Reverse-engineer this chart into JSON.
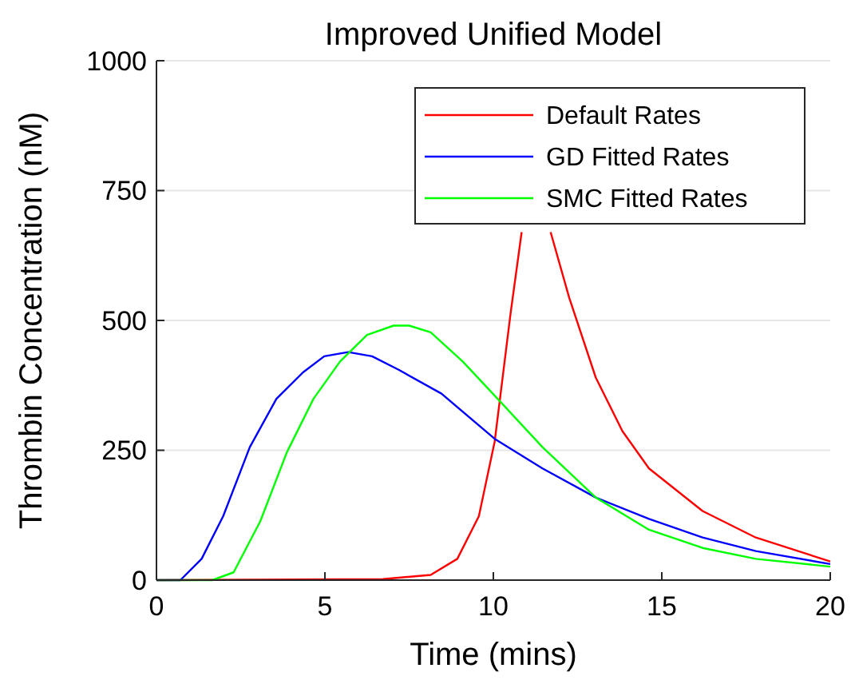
{
  "chart_data": {
    "type": "line",
    "title": "Improved Unified Model",
    "xlabel": "Time (mins)",
    "ylabel": "Thrombin Concentration (nM)",
    "xlim": [
      0,
      20
    ],
    "xticks": [
      0,
      5,
      10,
      15,
      20
    ],
    "ylim": [
      0,
      1000
    ],
    "yticks": [
      0,
      250,
      500,
      750,
      1000
    ],
    "grid": "y",
    "legend": "top right",
    "line_style": "solid",
    "series": [
      {
        "name": "Default Rates",
        "color": "#ff0000",
        "x": [
          0,
          6.72,
          8.14,
          8.93,
          9.57,
          10.04,
          10.51,
          10.84,
          10.91,
          11.3,
          11.62,
          11.7,
          12.25,
          13.04,
          13.83,
          14.62,
          16.21,
          17.79,
          20
        ],
        "values": [
          0,
          2,
          10,
          41,
          123,
          267,
          513,
          670,
          null,
          null,
          null,
          670,
          544,
          390,
          287,
          215,
          133,
          82,
          36
        ]
      },
      {
        "name": "GD Fitted Rates",
        "color": "#0000ff",
        "x": [
          0,
          0.71,
          1.34,
          1.98,
          2.77,
          3.56,
          4.35,
          4.98,
          5.69,
          6.4,
          7.19,
          8.46,
          10.04,
          11.46,
          13.04,
          14.62,
          16.21,
          17.79,
          20
        ],
        "values": [
          0,
          0,
          41,
          123,
          256,
          349,
          400,
          431,
          439,
          431,
          405,
          359,
          272,
          215,
          159,
          118,
          82,
          56,
          31
        ]
      },
      {
        "name": "SMC Fitted Rates",
        "color": "#00ff00",
        "x": [
          0,
          1.66,
          2.29,
          3.08,
          3.87,
          4.66,
          5.45,
          6.25,
          7.04,
          7.5,
          8.14,
          9.09,
          10.2,
          11.46,
          13.04,
          14.62,
          16.21,
          17.79,
          20
        ],
        "values": [
          0,
          0,
          15,
          113,
          246,
          349,
          421,
          472,
          490,
          490,
          477,
          421,
          344,
          256,
          159,
          97,
          62,
          41,
          26
        ]
      }
    ]
  }
}
